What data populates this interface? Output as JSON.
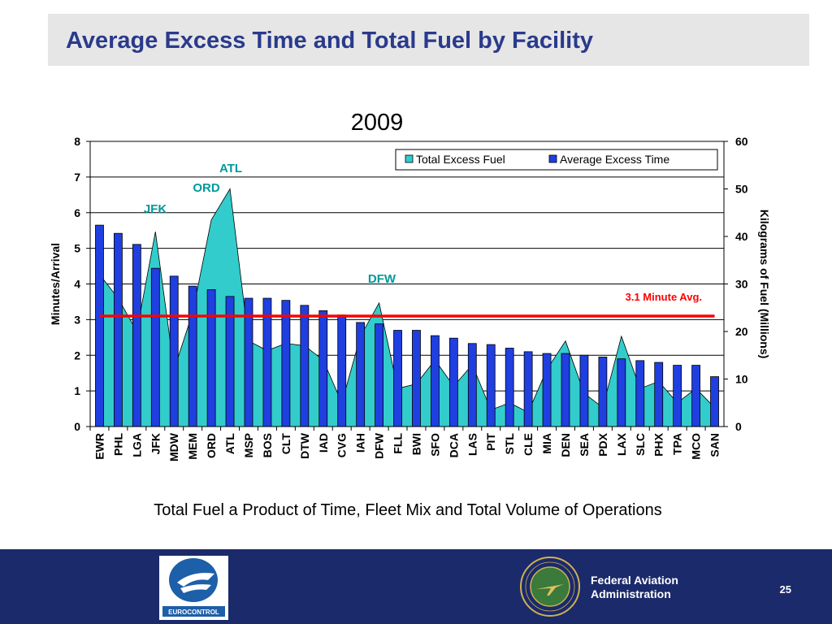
{
  "slide": {
    "title": "Average Excess Time and Total Fuel by Facility",
    "caption": "Total Fuel a Product of Time, Fleet Mix and Total Volume of Operations",
    "page_number": "25",
    "faa_text_line1": "Federal Aviation",
    "faa_text_line2": "Administration",
    "eurocontrol_logo_text": "EUROCONTROL",
    "faa_seal_text": "FEDERAL AVIATION ADMINISTRATION"
  },
  "colors": {
    "title": "#2a3a8c",
    "fuel_area": "#33cccc",
    "time_bars": "#1f3fe0",
    "avg_line": "#ff0000",
    "footer": "#1b2a6b",
    "callouts": "#009999"
  },
  "chart_data": {
    "type": "bar",
    "title": "2009",
    "ylabel": "Minutes/Arrival",
    "y2label": "Kilograms of Fuel (Millions)",
    "ylim": [
      0,
      8
    ],
    "y2lim": [
      0,
      60
    ],
    "yticks": [
      0,
      1,
      2,
      3,
      4,
      5,
      6,
      7,
      8
    ],
    "y2ticks": [
      0,
      10,
      20,
      30,
      40,
      50,
      60
    ],
    "legend_position": "top-right",
    "grid": true,
    "categories": [
      "EWR",
      "PHL",
      "LGA",
      "JFK",
      "MDW",
      "MEM",
      "ORD",
      "ATL",
      "MSP",
      "BOS",
      "CLT",
      "DTW",
      "IAD",
      "CVG",
      "IAH",
      "DFW",
      "FLL",
      "BWI",
      "SFO",
      "DCA",
      "LAS",
      "PIT",
      "STL",
      "CLE",
      "MIA",
      "DEN",
      "SEA",
      "PDX",
      "LAX",
      "SLC",
      "PHX",
      "TPA",
      "MCO",
      "SAN"
    ],
    "series": [
      {
        "name": "Total Excess Fuel",
        "type": "area",
        "axis": "right",
        "values": [
          32,
          27,
          20,
          41,
          12,
          24,
          43.5,
          50,
          18,
          16,
          17.5,
          17,
          14,
          5,
          19,
          26,
          8,
          9,
          14,
          8.5,
          13,
          3.5,
          5,
          3,
          12,
          18,
          7,
          4,
          19,
          8,
          9.5,
          5,
          8,
          4
        ]
      },
      {
        "name": "Average Excess Time",
        "type": "bar",
        "axis": "left",
        "values": [
          5.65,
          5.42,
          5.11,
          4.44,
          4.22,
          3.94,
          3.84,
          3.65,
          3.6,
          3.6,
          3.54,
          3.4,
          3.25,
          3.13,
          2.92,
          2.88,
          2.7,
          2.7,
          2.55,
          2.48,
          2.33,
          2.3,
          2.2,
          2.1,
          2.05,
          2.05,
          2.0,
          1.95,
          1.9,
          1.85,
          1.8,
          1.72,
          1.72,
          1.4
        ]
      }
    ],
    "reference_line": {
      "value": 3.1,
      "label": "3.1 Minute Avg."
    },
    "annotations": [
      "ATL",
      "ORD",
      "JFK",
      "DFW"
    ]
  }
}
